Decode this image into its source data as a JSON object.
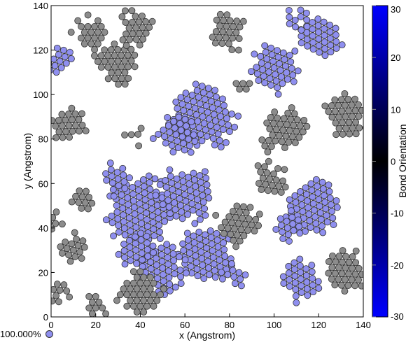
{
  "chart_data": {
    "type": "scatter",
    "title": "",
    "xlabel": "x (Angstrom)",
    "ylabel": "y (Angstrom)",
    "xlim": [
      0,
      140
    ],
    "ylim": [
      0,
      140
    ],
    "xticks": [
      0,
      20,
      40,
      60,
      80,
      100,
      120,
      140
    ],
    "yticks": [
      0,
      20,
      40,
      60,
      80,
      100,
      120,
      140
    ],
    "colorbar": {
      "label": "Bond Orientation",
      "min": -30,
      "max": 30,
      "ticks": [
        30,
        20,
        10,
        0,
        -10,
        -20,
        -30
      ],
      "color_low": "#0000ff",
      "color_mid": "#000000",
      "color_high": "#0000ff"
    },
    "atom_colors": {
      "blue_grains": "#8f8fef",
      "gray_grains": "#8c8c8c",
      "edge": "#333333"
    },
    "lattice_spacing": 3.0,
    "grains": [
      {
        "cx": 40,
        "cy": 48,
        "r": 15,
        "orientation": -25
      },
      {
        "cx": 60,
        "cy": 55,
        "r": 12,
        "orientation": -22
      },
      {
        "cx": 68,
        "cy": 90,
        "r": 14,
        "orientation": -18
      },
      {
        "cx": 56,
        "cy": 82,
        "r": 9,
        "orientation": -20
      },
      {
        "cx": 70,
        "cy": 28,
        "r": 12,
        "orientation": -24
      },
      {
        "cx": 50,
        "cy": 22,
        "r": 10,
        "orientation": -26
      },
      {
        "cx": 38,
        "cy": 30,
        "r": 8,
        "orientation": -27
      },
      {
        "cx": 100,
        "cy": 112,
        "r": 10,
        "orientation": -21
      },
      {
        "cx": 120,
        "cy": 125,
        "r": 9,
        "orientation": -28
      },
      {
        "cx": 112,
        "cy": 135,
        "r": 5,
        "orientation": -28
      },
      {
        "cx": 118,
        "cy": 48,
        "r": 12,
        "orientation": -23
      },
      {
        "cx": 106,
        "cy": 40,
        "r": 6,
        "orientation": -23
      },
      {
        "cx": 112,
        "cy": 17,
        "r": 9,
        "orientation": -27
      },
      {
        "cx": 82,
        "cy": 18,
        "r": 5,
        "orientation": -20
      },
      {
        "cx": 10,
        "cy": 30,
        "r": 6,
        "orientation": -15
      },
      {
        "cx": 4,
        "cy": 115,
        "r": 5,
        "orientation": -18
      },
      {
        "cx": 30,
        "cy": 62,
        "r": 6,
        "orientation": -24
      },
      {
        "cx": 14,
        "cy": 54,
        "r": 5,
        "orientation": -4
      },
      {
        "cx": 30,
        "cy": 115,
        "r": 9,
        "orientation": 1
      },
      {
        "cx": 38,
        "cy": 130,
        "r": 8,
        "orientation": 2
      },
      {
        "cx": 18,
        "cy": 128,
        "r": 7,
        "orientation": 0
      },
      {
        "cx": 80,
        "cy": 128,
        "r": 8,
        "orientation": -3
      },
      {
        "cx": 86,
        "cy": 105,
        "r": 4,
        "orientation": 0
      },
      {
        "cx": 8,
        "cy": 86,
        "r": 7,
        "orientation": 2
      },
      {
        "cx": 36,
        "cy": 82,
        "r": 4,
        "orientation": 3
      },
      {
        "cx": 84,
        "cy": 42,
        "r": 9,
        "orientation": -6
      },
      {
        "cx": 98,
        "cy": 62,
        "r": 7,
        "orientation": -8
      },
      {
        "cx": 104,
        "cy": 84,
        "r": 10,
        "orientation": -5
      },
      {
        "cx": 132,
        "cy": 90,
        "r": 9,
        "orientation": 2
      },
      {
        "cx": 132,
        "cy": 22,
        "r": 9,
        "orientation": -2
      },
      {
        "cx": 40,
        "cy": 10,
        "r": 9,
        "orientation": 0
      },
      {
        "cx": 20,
        "cy": 4,
        "r": 5,
        "orientation": 0
      },
      {
        "cx": 4,
        "cy": 12,
        "r": 4,
        "orientation": -6
      },
      {
        "cx": 2,
        "cy": 42,
        "r": 4,
        "orientation": -4
      }
    ],
    "legend": {
      "label": "100.000%",
      "placement": "bottom-left"
    }
  }
}
